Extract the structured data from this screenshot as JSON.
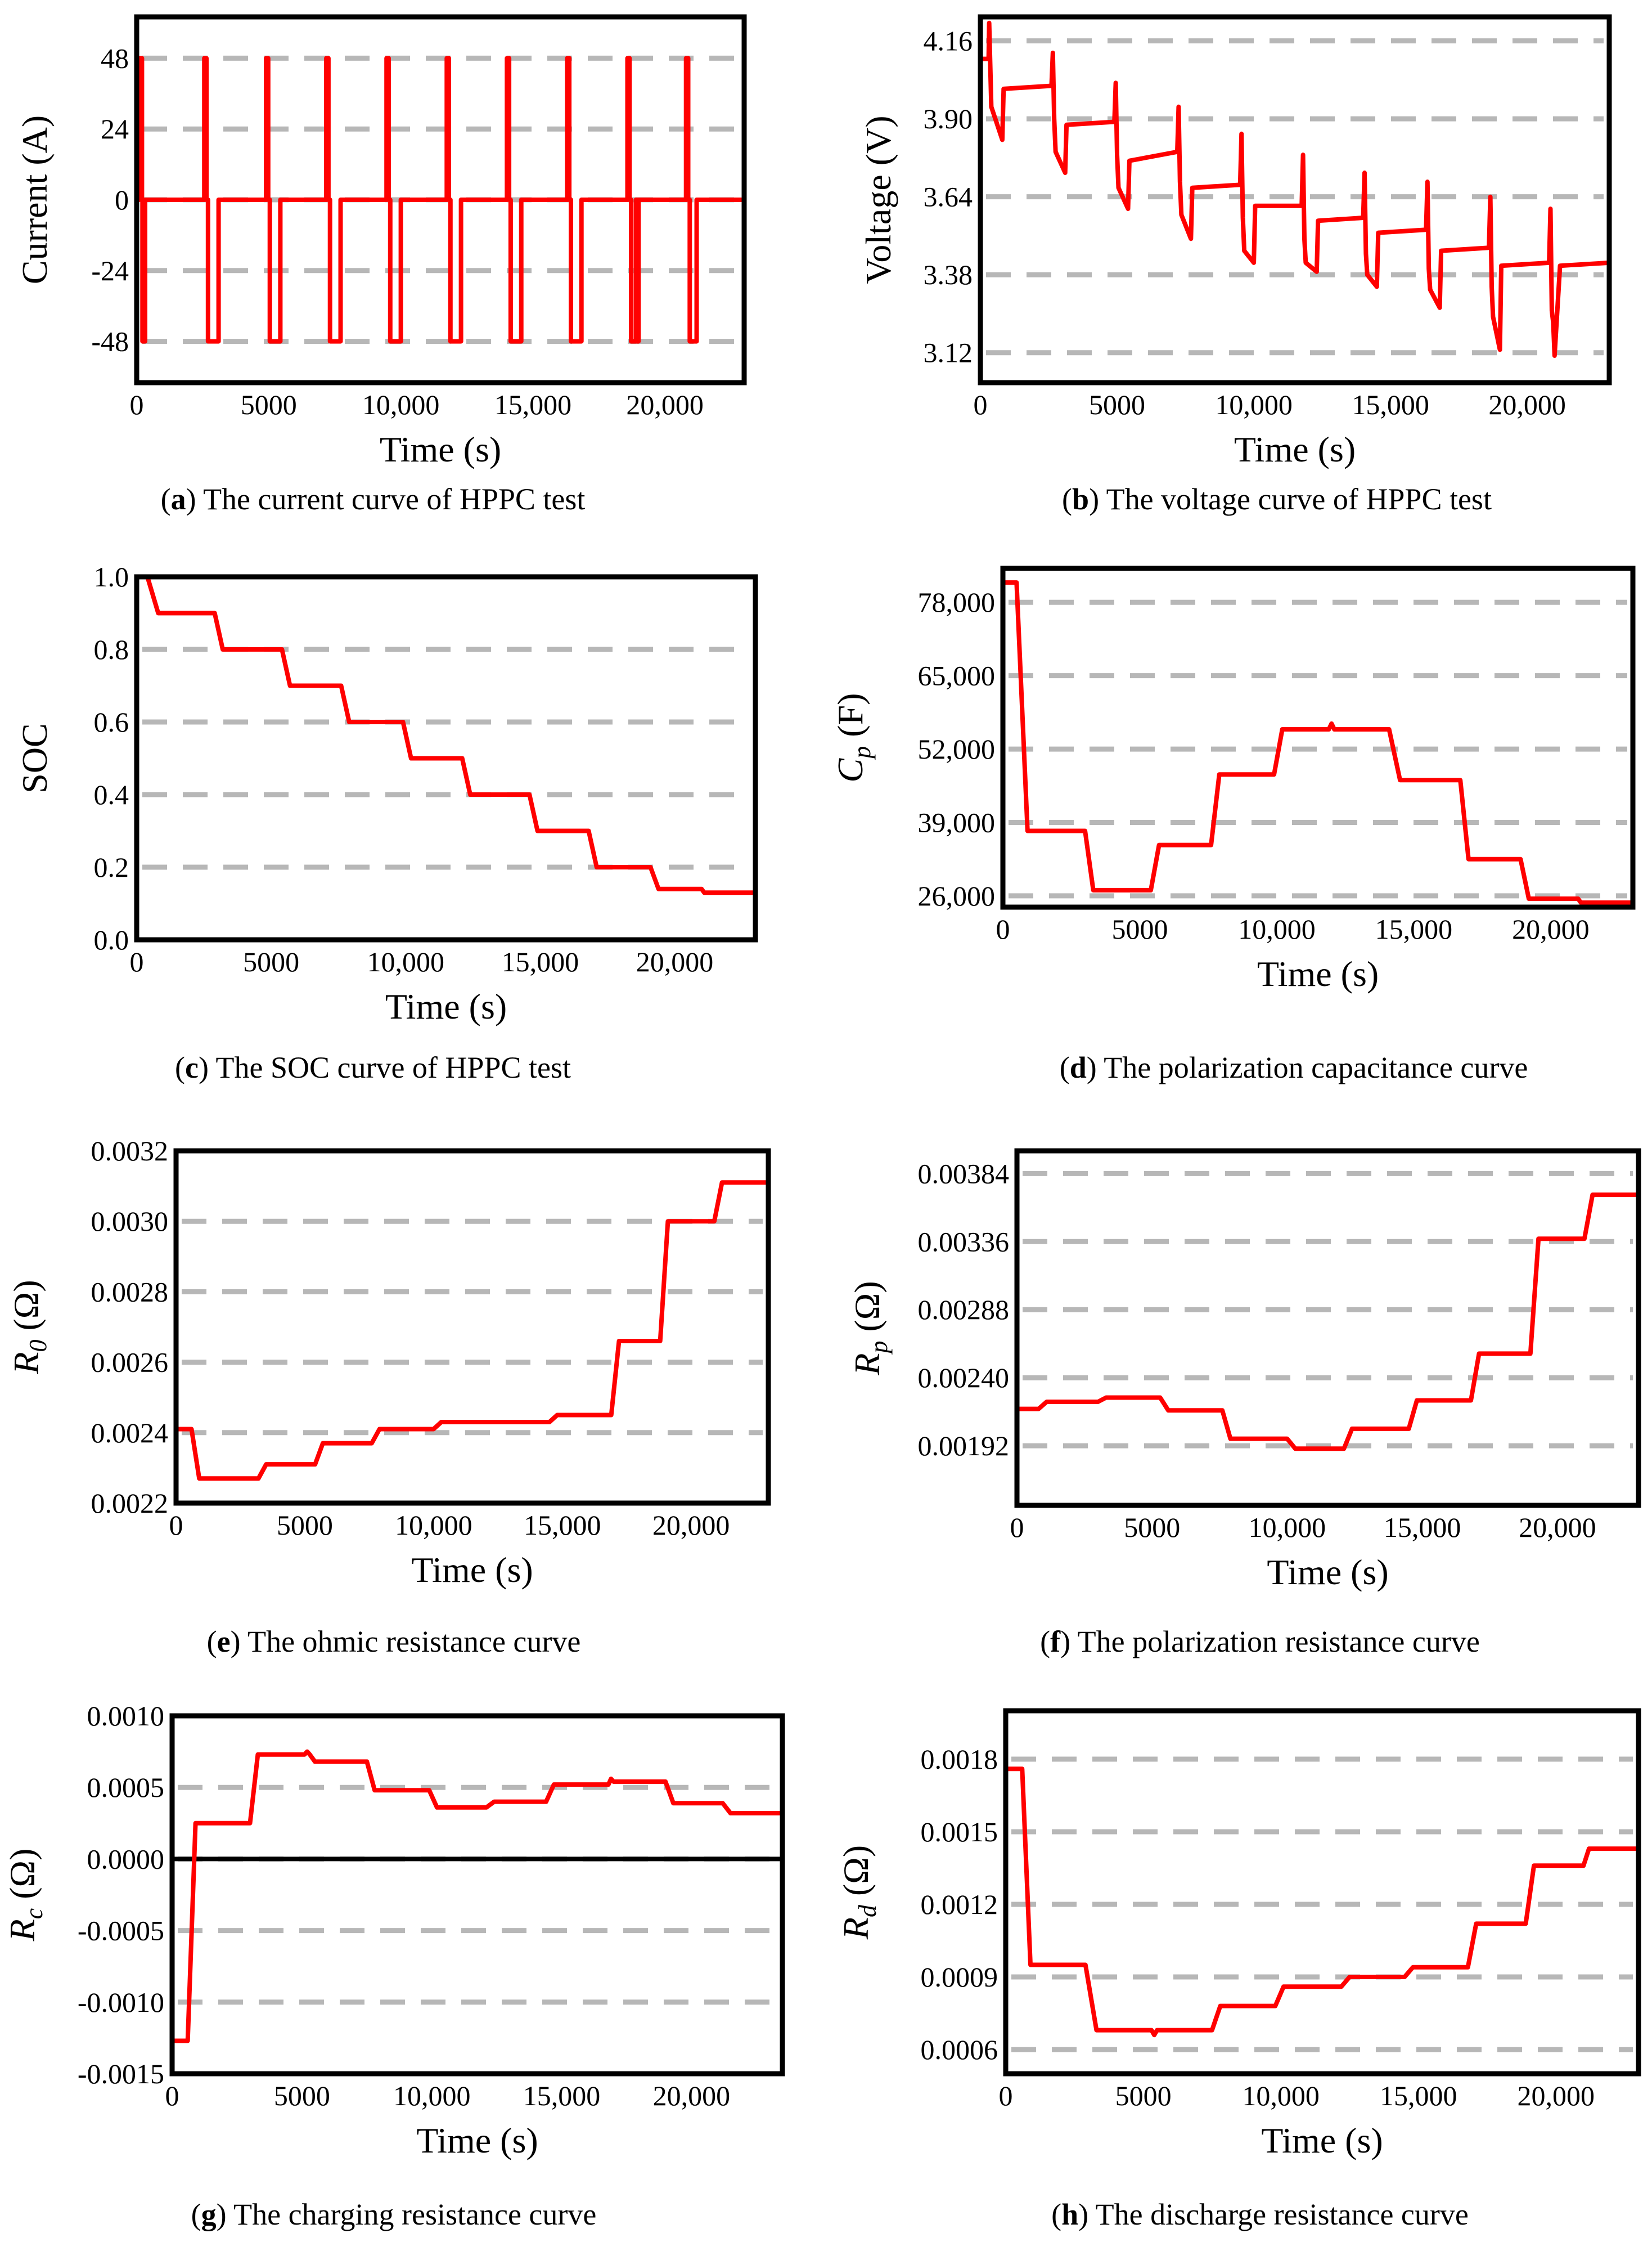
{
  "colors": {
    "series": "#ff0000",
    "grid": "#b7b7b7",
    "axis": "#000000",
    "background": "#ffffff"
  },
  "chart_data": [
    {
      "id": "a",
      "type": "line",
      "caption_letter": "a",
      "caption_text": " The current curve of HPPC test",
      "xlabel": "Time (s)",
      "ylabel": "Current (A)",
      "xlim": [
        0,
        23000
      ],
      "ylim": [
        -62,
        62
      ],
      "xticks": [
        0,
        5000,
        10000,
        15000,
        20000
      ],
      "xtick_labels": [
        "0",
        "5000",
        "10,000",
        "15,000",
        "20,000"
      ],
      "yticks": [
        48,
        24,
        0,
        -24,
        -48
      ],
      "ytick_labels": [
        "48",
        "24",
        "0",
        "-24",
        "-48"
      ],
      "grid": "horizontal dashed",
      "x": [
        0,
        100,
        100,
        200,
        200,
        220,
        220,
        320,
        320,
        800,
        800,
        2560,
        2560,
        2640,
        2640,
        2700,
        2700,
        3100,
        3100,
        4900,
        4900,
        4980,
        4980,
        5040,
        5040,
        5440,
        5440,
        7180,
        7180,
        7260,
        7260,
        7320,
        7320,
        7720,
        7720,
        9460,
        9460,
        9540,
        9540,
        9600,
        9600,
        10000,
        10000,
        11740,
        11740,
        11820,
        11820,
        11880,
        11880,
        12280,
        12280,
        14020,
        14020,
        14100,
        14100,
        14160,
        14160,
        14560,
        14560,
        16300,
        16300,
        16380,
        16380,
        16440,
        16440,
        16840,
        16840,
        18580,
        18580,
        18660,
        18660,
        18720,
        18720,
        18900,
        18900,
        18960,
        18960,
        19000,
        19000,
        20800,
        20800,
        20880,
        20880,
        20940,
        20940,
        21200,
        21200,
        23000
      ],
      "y": [
        0,
        0,
        48,
        48,
        0,
        0,
        -48,
        -48,
        0,
        0,
        0,
        0,
        48,
        48,
        0,
        0,
        -48,
        -48,
        0,
        0,
        48,
        48,
        0,
        0,
        -48,
        -48,
        0,
        0,
        48,
        48,
        0,
        0,
        -48,
        -48,
        0,
        0,
        48,
        48,
        0,
        0,
        -48,
        -48,
        0,
        0,
        48,
        48,
        0,
        0,
        -48,
        -48,
        0,
        0,
        48,
        48,
        0,
        0,
        -48,
        -48,
        0,
        0,
        48,
        48,
        0,
        0,
        -48,
        -48,
        0,
        0,
        48,
        48,
        0,
        0,
        -48,
        -48,
        0,
        0,
        -48,
        -48,
        0,
        0,
        48,
        48,
        0,
        0,
        -48,
        -48,
        0,
        0
      ]
    },
    {
      "id": "b",
      "type": "line",
      "caption_letter": "b",
      "caption_text": " The voltage curve of HPPC test",
      "xlabel": "Time (s)",
      "ylabel": "Voltage (V)",
      "xlim": [
        0,
        23000
      ],
      "ylim": [
        3.02,
        4.24
      ],
      "xticks": [
        0,
        5000,
        10000,
        15000,
        20000
      ],
      "xtick_labels": [
        "0",
        "5000",
        "10,000",
        "15,000",
        "20,000"
      ],
      "yticks": [
        4.16,
        3.9,
        3.64,
        3.38,
        3.12
      ],
      "ytick_labels": [
        "4.16",
        "3.90",
        "3.64",
        "3.38",
        "3.12"
      ],
      "grid": "horizontal dashed",
      "x": [
        0,
        300,
        320,
        360,
        400,
        800,
        850,
        2600,
        2650,
        2700,
        2750,
        3100,
        3150,
        4900,
        4950,
        5000,
        5050,
        5400,
        5450,
        7200,
        7250,
        7300,
        7350,
        7700,
        7750,
        9500,
        9550,
        9600,
        9650,
        10000,
        10050,
        11750,
        11800,
        11850,
        11900,
        12300,
        12350,
        14000,
        14050,
        14100,
        14150,
        14500,
        14550,
        16300,
        16350,
        16400,
        16450,
        16800,
        16850,
        18600,
        18650,
        18700,
        18750,
        19000,
        19050,
        20800,
        20850,
        20900,
        20950,
        21000,
        21200,
        23000
      ],
      "y": [
        4.1,
        4.1,
        4.22,
        4.08,
        3.94,
        3.83,
        4.0,
        4.01,
        4.12,
        3.9,
        3.79,
        3.72,
        3.88,
        3.89,
        4.02,
        3.78,
        3.67,
        3.6,
        3.76,
        3.79,
        3.94,
        3.69,
        3.58,
        3.5,
        3.67,
        3.68,
        3.85,
        3.57,
        3.46,
        3.42,
        3.61,
        3.61,
        3.78,
        3.5,
        3.42,
        3.39,
        3.56,
        3.57,
        3.72,
        3.45,
        3.38,
        3.34,
        3.52,
        3.53,
        3.69,
        3.4,
        3.33,
        3.27,
        3.46,
        3.47,
        3.64,
        3.34,
        3.24,
        3.13,
        3.41,
        3.42,
        3.6,
        3.26,
        3.22,
        3.11,
        3.41,
        3.42
      ]
    },
    {
      "id": "c",
      "type": "line",
      "caption_letter": "c",
      "caption_text": " The SOC curve of HPPC test",
      "xlabel": "Time (s)",
      "ylabel": "SOC",
      "xlim": [
        0,
        23000
      ],
      "ylim": [
        0.0,
        1.0
      ],
      "xticks": [
        0,
        5000,
        10000,
        15000,
        20000
      ],
      "xtick_labels": [
        "0",
        "5000",
        "10,000",
        "15,000",
        "20,000"
      ],
      "yticks": [
        1.0,
        0.8,
        0.6,
        0.4,
        0.2,
        0.0
      ],
      "ytick_labels": [
        "1.0",
        "0.8",
        "0.6",
        "0.4",
        "0.2",
        "0.0"
      ],
      "grid": "horizontal dashed",
      "x": [
        0,
        400,
        800,
        2900,
        3200,
        5400,
        5700,
        7600,
        7900,
        9900,
        10200,
        12100,
        12400,
        14600,
        14900,
        16800,
        17100,
        19100,
        19400,
        21000,
        21100,
        23000
      ],
      "y": [
        1.0,
        1.0,
        0.9,
        0.9,
        0.8,
        0.8,
        0.7,
        0.7,
        0.6,
        0.6,
        0.5,
        0.5,
        0.4,
        0.4,
        0.3,
        0.3,
        0.2,
        0.2,
        0.14,
        0.14,
        0.13,
        0.13
      ]
    },
    {
      "id": "d",
      "type": "line",
      "caption_letter": "d",
      "caption_text": " The polarization capacitance curve",
      "xlabel": "Time (s)",
      "ylabel": "C",
      "ylabel_sub": "p",
      "ylabel_unit": " (F)",
      "xlim": [
        0,
        23000
      ],
      "ylim": [
        24000,
        84000
      ],
      "xticks": [
        0,
        5000,
        10000,
        15000,
        20000
      ],
      "xtick_labels": [
        "0",
        "5000",
        "10,000",
        "15,000",
        "20,000"
      ],
      "yticks": [
        78000,
        65000,
        52000,
        39000,
        26000
      ],
      "ytick_labels": [
        "78,000",
        "65,000",
        "52,000",
        "39,000",
        "26,000"
      ],
      "grid": "horizontal dashed",
      "x": [
        0,
        500,
        900,
        3000,
        3300,
        5400,
        5700,
        7600,
        7900,
        9900,
        10200,
        11900,
        12000,
        12100,
        12200,
        14100,
        14500,
        16700,
        17000,
        18900,
        19200,
        21000,
        21100,
        23000
      ],
      "y": [
        81500,
        81500,
        37500,
        37500,
        27000,
        27000,
        35000,
        35000,
        47500,
        47500,
        55500,
        55500,
        56500,
        55500,
        55500,
        55500,
        46500,
        46500,
        32500,
        32500,
        25500,
        25500,
        24800,
        24800
      ]
    },
    {
      "id": "e",
      "type": "line",
      "caption_letter": "e",
      "caption_text": " The ohmic resistance curve",
      "xlabel": "Time (s)",
      "ylabel": "R",
      "ylabel_sub": "0",
      "ylabel_unit": " (Ω)",
      "xlim": [
        0,
        23000
      ],
      "ylim": [
        0.0022,
        0.0032
      ],
      "xticks": [
        0,
        5000,
        10000,
        15000,
        20000
      ],
      "xtick_labels": [
        "0",
        "5000",
        "10,000",
        "15,000",
        "20,000"
      ],
      "yticks": [
        0.0032,
        0.003,
        0.0028,
        0.0026,
        0.0024,
        0.0022
      ],
      "ytick_labels": [
        "0.0032",
        "0.0030",
        "0.0028",
        "0.0026",
        "0.0024",
        "0.0022"
      ],
      "grid": "horizontal dashed",
      "x": [
        0,
        600,
        900,
        3200,
        3500,
        5400,
        5700,
        7600,
        7900,
        10000,
        10300,
        14500,
        14800,
        16900,
        17200,
        18800,
        19100,
        20900,
        21200,
        23000
      ],
      "y": [
        0.00241,
        0.00241,
        0.00227,
        0.00227,
        0.00231,
        0.00231,
        0.00237,
        0.00237,
        0.00241,
        0.00241,
        0.00243,
        0.00243,
        0.00245,
        0.00245,
        0.00266,
        0.00266,
        0.003,
        0.003,
        0.00311,
        0.00311
      ]
    },
    {
      "id": "f",
      "type": "line",
      "caption_letter": "f",
      "caption_text": " The polarization resistance curve",
      "xlabel": "Time (s)",
      "ylabel": "R",
      "ylabel_sub": "p",
      "ylabel_unit": " (Ω)",
      "xlim": [
        0,
        23000
      ],
      "ylim": [
        0.0015,
        0.004
      ],
      "xticks": [
        0,
        5000,
        10000,
        15000,
        20000
      ],
      "xtick_labels": [
        "0",
        "5000",
        "10,000",
        "15,000",
        "20,000"
      ],
      "yticks": [
        0.00384,
        0.00336,
        0.00288,
        0.0024,
        0.00192
      ],
      "ytick_labels": [
        "0.00384",
        "0.00336",
        "0.00288",
        "0.00240",
        "0.00192"
      ],
      "grid": "horizontal dashed",
      "x": [
        0,
        800,
        1100,
        3000,
        3300,
        5300,
        5600,
        7600,
        7900,
        10000,
        10300,
        12100,
        12400,
        14500,
        14800,
        16800,
        17100,
        19000,
        19300,
        21000,
        21300,
        23000
      ],
      "y": [
        0.00218,
        0.00218,
        0.00223,
        0.00223,
        0.00226,
        0.00226,
        0.00217,
        0.00217,
        0.00197,
        0.00197,
        0.0019,
        0.0019,
        0.00204,
        0.00204,
        0.00224,
        0.00224,
        0.00257,
        0.00257,
        0.00338,
        0.00338,
        0.00369,
        0.00369
      ]
    },
    {
      "id": "g",
      "type": "line",
      "caption_letter": "g",
      "caption_text": " The charging resistance curve",
      "xlabel": "Time (s)",
      "ylabel": "R",
      "ylabel_sub": "c",
      "ylabel_unit": " (Ω)",
      "xlim": [
        0,
        23500
      ],
      "ylim": [
        -0.0015,
        0.001
      ],
      "xticks": [
        0,
        5000,
        10000,
        15000,
        20000
      ],
      "xtick_labels": [
        "0",
        "5000",
        "10,000",
        "15,000",
        "20,000"
      ],
      "yticks": [
        0.001,
        0.0005,
        0.0,
        -0.0005,
        -0.001,
        -0.0015
      ],
      "ytick_labels": [
        "0.0010",
        "0.0005",
        "0.0000",
        "-0.0005",
        "-0.0010",
        "-0.0015"
      ],
      "grid": "horizontal dashed",
      "zero_line": 0.0,
      "x": [
        0,
        600,
        900,
        3000,
        3300,
        5100,
        5200,
        5300,
        5500,
        7500,
        7800,
        9900,
        10200,
        12100,
        12400,
        14400,
        14700,
        16800,
        16900,
        17000,
        19000,
        19300,
        21200,
        21500,
        23500
      ],
      "y": [
        -0.00127,
        -0.00127,
        0.00025,
        0.00025,
        0.00073,
        0.00073,
        0.00075,
        0.00073,
        0.00068,
        0.00068,
        0.00048,
        0.00048,
        0.00036,
        0.00036,
        0.0004,
        0.0004,
        0.00052,
        0.00052,
        0.00056,
        0.00054,
        0.00054,
        0.00039,
        0.00039,
        0.00032,
        0.00032
      ]
    },
    {
      "id": "h",
      "type": "line",
      "caption_letter": "h",
      "caption_text": " The discharge resistance curve",
      "xlabel": "Time (s)",
      "ylabel": "R",
      "ylabel_sub": "d",
      "ylabel_unit": " (Ω)",
      "xlim": [
        0,
        23000
      ],
      "ylim": [
        0.0005,
        0.002
      ],
      "xticks": [
        0,
        5000,
        10000,
        15000,
        20000
      ],
      "xtick_labels": [
        "0",
        "5000",
        "10,000",
        "15,000",
        "20,000"
      ],
      "yticks": [
        0.0018,
        0.0015,
        0.0012,
        0.0009,
        0.0006
      ],
      "ytick_labels": [
        "0.0018",
        "0.0015",
        "0.0012",
        "0.0009",
        "0.0006"
      ],
      "grid": "horizontal dashed",
      "x": [
        0,
        600,
        900,
        2900,
        3300,
        5300,
        5400,
        5500,
        7500,
        7800,
        9800,
        10100,
        12200,
        12500,
        14500,
        14800,
        16800,
        17100,
        18900,
        19200,
        21000,
        21200,
        23000
      ],
      "y": [
        0.00176,
        0.00176,
        0.00095,
        0.00095,
        0.00068,
        0.00068,
        0.00066,
        0.00068,
        0.00068,
        0.00078,
        0.00078,
        0.00086,
        0.00086,
        0.0009,
        0.0009,
        0.00094,
        0.00094,
        0.00112,
        0.00112,
        0.00136,
        0.00136,
        0.00143,
        0.00143
      ]
    }
  ]
}
